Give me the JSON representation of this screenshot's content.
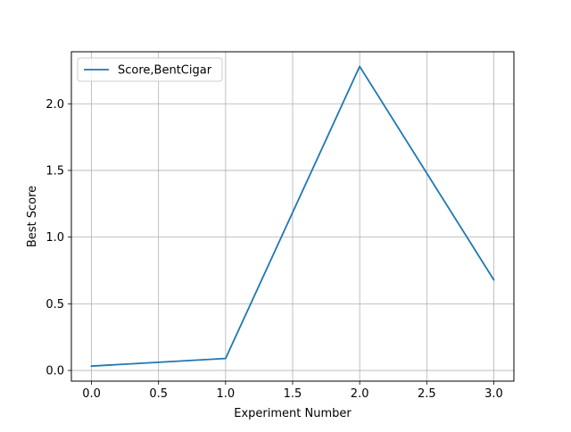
{
  "chart_data": {
    "type": "line",
    "title": "",
    "xlabel": "Experiment Number",
    "ylabel": "Best Score",
    "xlim": [
      -0.15,
      3.15
    ],
    "ylim": [
      -0.08,
      2.39
    ],
    "xticks": [
      0.0,
      0.5,
      1.0,
      1.5,
      2.0,
      2.5,
      3.0
    ],
    "xtick_labels": [
      "0.0",
      "0.5",
      "1.0",
      "1.5",
      "2.0",
      "2.5",
      "3.0"
    ],
    "yticks": [
      0.0,
      0.5,
      1.0,
      1.5,
      2.0
    ],
    "ytick_labels": [
      "0.0",
      "0.5",
      "1.0",
      "1.5",
      "2.0"
    ],
    "grid": true,
    "legend": {
      "position": "upper-left",
      "entries": [
        "Score,BentCigar"
      ]
    },
    "series": [
      {
        "name": "Score,BentCigar",
        "color": "#1f77b4",
        "x": [
          0,
          1,
          2,
          3
        ],
        "y": [
          0.033,
          0.09,
          2.28,
          0.68
        ]
      }
    ]
  }
}
